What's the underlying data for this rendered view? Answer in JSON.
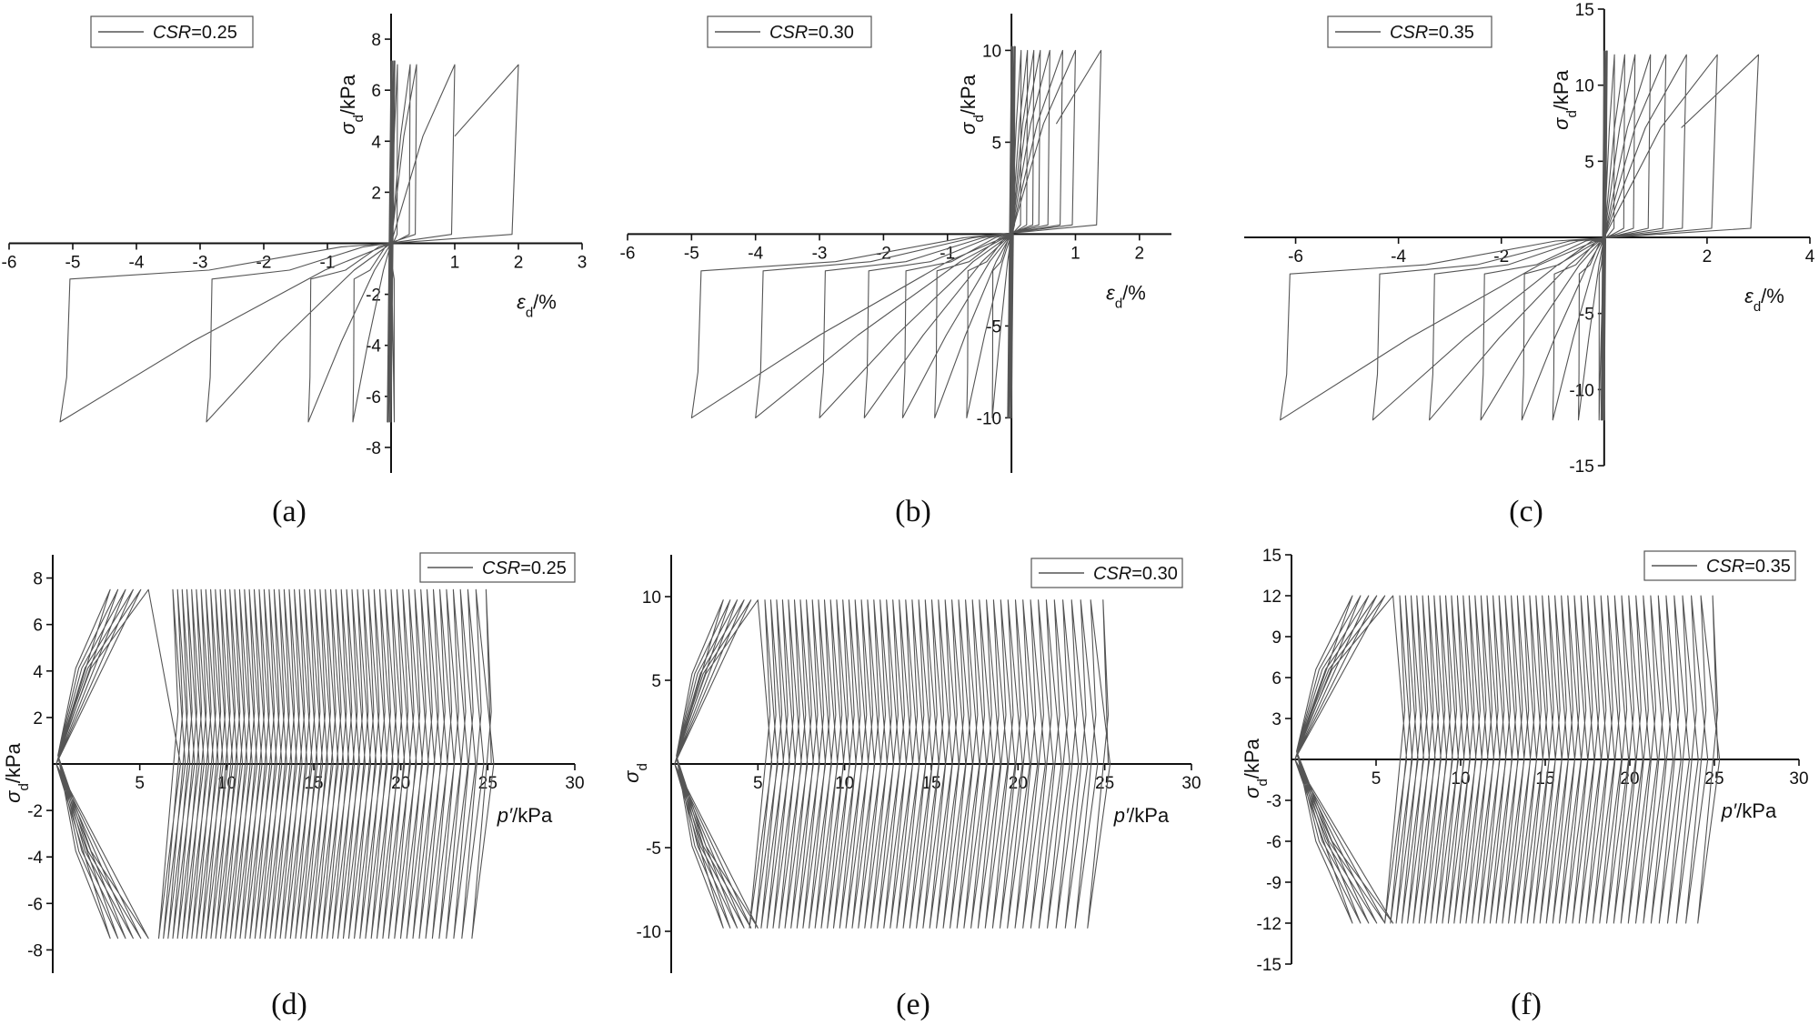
{
  "colors": {
    "series": "#555555",
    "axis": "#111111",
    "background": "#ffffff"
  },
  "chart_data": [
    {
      "id": "a",
      "caption": "(a)",
      "type": "line",
      "xlabel": "εd/%",
      "ylabel": "σd/kPa",
      "xlim": [
        -6,
        3
      ],
      "ylim": [
        -9,
        9
      ],
      "xticks": [
        -6,
        -5,
        -4,
        -3,
        -2,
        -1,
        1,
        2,
        3
      ],
      "yticks": [
        -8,
        -6,
        -4,
        -2,
        2,
        4,
        6,
        8
      ],
      "grid": false,
      "legend_position": "top-left",
      "series": [
        {
          "name": "CSR=0.25",
          "loop_ends": [
            -5.2,
            -2.9,
            -1.3,
            -0.6,
            0.05
          ],
          "loop_tops": [
            2.0,
            1.0,
            0.4,
            0.3,
            0.1
          ],
          "amplitude": 7.0
        }
      ]
    },
    {
      "id": "b",
      "caption": "(b)",
      "type": "line",
      "xlabel": "εd/%",
      "ylabel": "σd/kPa",
      "xlim": [
        -6,
        2.5
      ],
      "ylim": [
        -13,
        12
      ],
      "xticks": [
        -6,
        -5,
        -4,
        -3,
        -2,
        -1,
        1,
        2
      ],
      "yticks": [
        -10,
        -5,
        5,
        10
      ],
      "grid": false,
      "legend_position": "top-left",
      "series": [
        {
          "name": "CSR=0.30",
          "loop_ends": [
            -5.0,
            -4.0,
            -3.0,
            -2.3,
            -1.7,
            -1.2,
            -0.7,
            -0.3,
            0.0
          ],
          "loop_tops": [
            1.4,
            1.0,
            0.8,
            0.6,
            0.45,
            0.35,
            0.25,
            0.15,
            0.05
          ],
          "amplitude": 10.0
        }
      ]
    },
    {
      "id": "c",
      "caption": "(c)",
      "type": "line",
      "xlabel": "εd/%",
      "ylabel": "σd/kPa",
      "xlim": [
        -7,
        4
      ],
      "ylim": [
        -15,
        15
      ],
      "xticks": [
        -6,
        -4,
        -2,
        2,
        4
      ],
      "yticks": [
        -15,
        -10,
        -5,
        5,
        10,
        15
      ],
      "grid": false,
      "legend_position": "top-left",
      "series": [
        {
          "name": "CSR=0.35",
          "loop_ends": [
            -6.3,
            -4.5,
            -3.4,
            -2.4,
            -1.6,
            -1.0,
            -0.5,
            -0.1
          ],
          "loop_tops": [
            3.0,
            2.2,
            1.6,
            1.2,
            0.9,
            0.6,
            0.4,
            0.2
          ],
          "amplitude": 12.0
        }
      ]
    },
    {
      "id": "d",
      "caption": "(d)",
      "type": "line",
      "xlabel": "p′/kPa",
      "ylabel": "σd/kPa",
      "xlim": [
        0,
        30
      ],
      "ylim": [
        -9,
        9
      ],
      "xticks": [
        5,
        10,
        15,
        20,
        25,
        30
      ],
      "yticks": [
        -8,
        -6,
        -4,
        -2,
        2,
        4,
        6,
        8
      ],
      "grid": false,
      "legend_position": "top-right",
      "series": [
        {
          "name": "CSR=0.25",
          "p_start": 25.5,
          "p_end": 7.5,
          "cycles": 58,
          "amplitude": 7.5,
          "failure_p": 5.5
        }
      ]
    },
    {
      "id": "e",
      "caption": "(e)",
      "type": "line",
      "xlabel": "p′/kPa",
      "ylabel": "σd",
      "xlim": [
        0,
        30
      ],
      "ylim": [
        -12.5,
        12.5
      ],
      "xticks": [
        5,
        10,
        15,
        20,
        25,
        30
      ],
      "yticks": [
        -10,
        -5,
        5,
        10
      ],
      "grid": false,
      "legend_position": "top-right",
      "series": [
        {
          "name": "CSR=0.30",
          "p_start": 25.5,
          "p_end": 6.0,
          "cycles": 50,
          "amplitude": 9.8,
          "failure_p": 5.0
        }
      ]
    },
    {
      "id": "f",
      "caption": "(f)",
      "type": "line",
      "xlabel": "p′/kPa",
      "ylabel": "σd/kPa",
      "xlim": [
        0,
        30
      ],
      "ylim": [
        -15,
        15
      ],
      "xticks": [
        5,
        10,
        15,
        20,
        25,
        30
      ],
      "yticks": [
        -15,
        -12,
        -9,
        -6,
        -3,
        3,
        6,
        9,
        12,
        15
      ],
      "grid": false,
      "legend_position": "top-right",
      "series": [
        {
          "name": "CSR=0.35",
          "p_start": 25.5,
          "p_end": 7.0,
          "cycles": 48,
          "amplitude": 12.0,
          "failure_p": 6.0
        }
      ]
    }
  ]
}
